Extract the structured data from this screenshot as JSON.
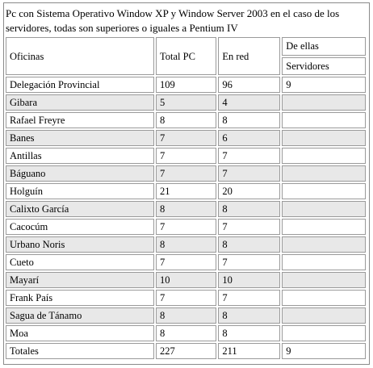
{
  "caption": "Pc con Sistema Operativo Window XP y Window Server 2003 en el caso de los servidores, todas son superiores o iguales a Pentium IV",
  "headers": {
    "oficinas": "Oficinas",
    "total_pc": "Total PC",
    "en_red": "En red",
    "de_ellas": "De ellas",
    "servidores": "Servidores"
  },
  "rows": [
    {
      "oficina": "Delegación Provincial",
      "total": "109",
      "red": "96",
      "servidores": "9"
    },
    {
      "oficina": "Gibara",
      "total": "5",
      "red": "4",
      "servidores": ""
    },
    {
      "oficina": "Rafael Freyre",
      "total": "8",
      "red": "8",
      "servidores": ""
    },
    {
      "oficina": "Banes",
      "total": "7",
      "red": "6",
      "servidores": ""
    },
    {
      "oficina": "Antillas",
      "total": "7",
      "red": "7",
      "servidores": ""
    },
    {
      "oficina": "Báguano",
      "total": "7",
      "red": "7",
      "servidores": ""
    },
    {
      "oficina": "Holguín",
      "total": "21",
      "red": "20",
      "servidores": ""
    },
    {
      "oficina": "Calixto García",
      "total": "8",
      "red": "8",
      "servidores": ""
    },
    {
      "oficina": "Cacocúm",
      "total": "7",
      "red": "7",
      "servidores": ""
    },
    {
      "oficina": "Urbano Noris",
      "total": "8",
      "red": "8",
      "servidores": ""
    },
    {
      "oficina": "Cueto",
      "total": "7",
      "red": "7",
      "servidores": ""
    },
    {
      "oficina": "Mayarí",
      "total": "10",
      "red": "10",
      "servidores": ""
    },
    {
      "oficina": "Frank País",
      "total": "7",
      "red": "7",
      "servidores": ""
    },
    {
      "oficina": "Sagua de Tánamo",
      "total": "8",
      "red": "8",
      "servidores": ""
    },
    {
      "oficina": "Moa",
      "total": "8",
      "red": "8",
      "servidores": ""
    },
    {
      "oficina": "Totales",
      "total": "227",
      "red": "211",
      "servidores": "9"
    }
  ]
}
